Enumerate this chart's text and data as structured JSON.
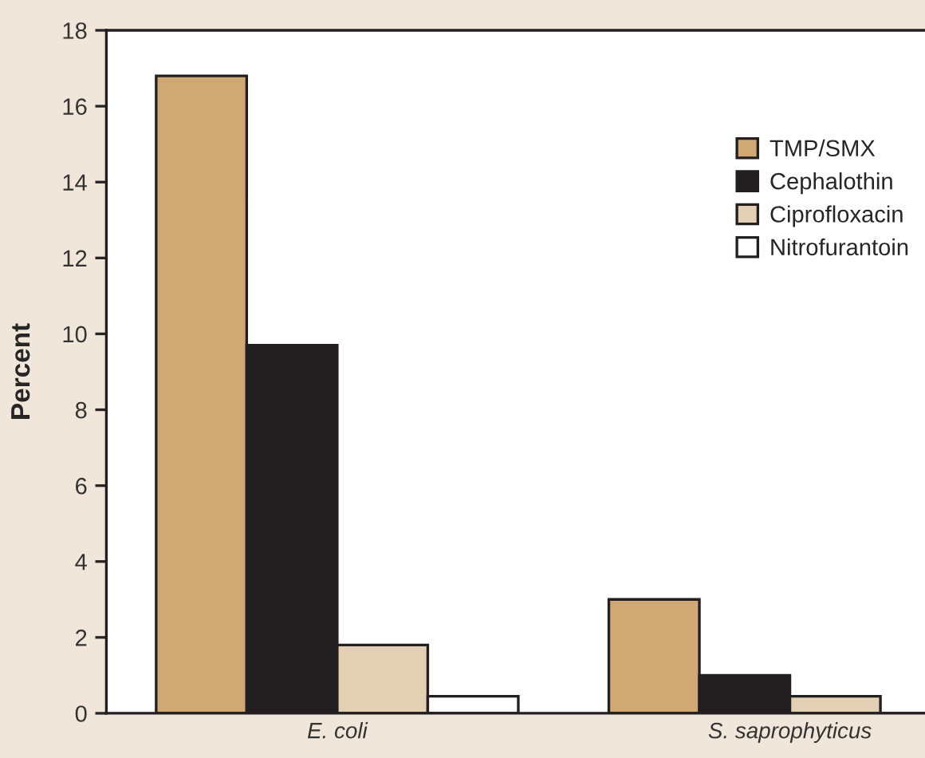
{
  "chart_data": {
    "type": "bar",
    "ylabel": "Percent",
    "categories": [
      "E. coli",
      "S. saprophyticus"
    ],
    "series": [
      {
        "name": "TMP/SMX",
        "color": "#cfa874",
        "values": [
          16.8,
          3.0
        ]
      },
      {
        "name": "Cephalothin",
        "color": "#231f20",
        "values": [
          9.7,
          1.0
        ]
      },
      {
        "name": "Ciprofloxacin",
        "color": "#e3d0b4",
        "values": [
          1.8,
          0.45
        ]
      },
      {
        "name": "Nitrofurantoin",
        "color": "#ffffff",
        "values": [
          0.45,
          0
        ]
      }
    ],
    "ylim": [
      0,
      18
    ],
    "yticks": [
      0,
      2,
      4,
      6,
      8,
      10,
      12,
      14,
      16,
      18
    ],
    "grid": false,
    "legend": "top right"
  }
}
